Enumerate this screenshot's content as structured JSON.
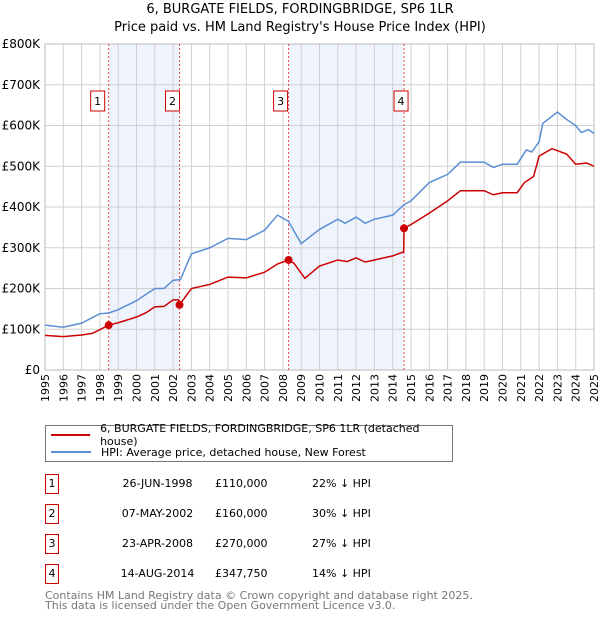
{
  "chart_data": {
    "type": "line",
    "title": "6, BURGATE FIELDS, FORDINGBRIDGE, SP6 1LR",
    "subtitle": "Price paid vs. HM Land Registry's House Price Index (HPI)",
    "xlim": [
      1995,
      2025
    ],
    "ylim": [
      0,
      800000
    ],
    "grid": true,
    "x_ticks": [
      "1995",
      "1996",
      "1997",
      "1998",
      "1999",
      "2000",
      "2001",
      "2002",
      "2003",
      "2004",
      "2005",
      "2006",
      "2007",
      "2008",
      "2009",
      "2010",
      "2011",
      "2012",
      "2013",
      "2014",
      "2015",
      "2016",
      "2017",
      "2018",
      "2019",
      "2020",
      "2021",
      "2022",
      "2023",
      "2024",
      "2025"
    ],
    "y_ticks": [
      {
        "v": 0,
        "label": "£0"
      },
      {
        "v": 100000,
        "label": "£100K"
      },
      {
        "v": 200000,
        "label": "£200K"
      },
      {
        "v": 300000,
        "label": "£300K"
      },
      {
        "v": 400000,
        "label": "£400K"
      },
      {
        "v": 500000,
        "label": "£500K"
      },
      {
        "v": 600000,
        "label": "£600K"
      },
      {
        "v": 700000,
        "label": "£700K"
      },
      {
        "v": 800000,
        "label": "£800K"
      }
    ],
    "shaded_ranges": [
      [
        1998.48,
        2002.35
      ],
      [
        2008.31,
        2014.62
      ]
    ],
    "series": [
      {
        "name": "6, BURGATE FIELDS, FORDINGBRIDGE, SP6 1LR (detached house)",
        "color": "#cc0000",
        "x": [
          1995,
          1996,
          1997,
          1997.6,
          1998.48,
          1999,
          2000,
          2000.5,
          2001,
          2001.5,
          2002,
          2002.3,
          2002.35,
          2003,
          2004,
          2005,
          2006,
          2007,
          2007.7,
          2008.31,
          2008.6,
          2009.2,
          2010,
          2011,
          2011.5,
          2012,
          2012.5,
          2013,
          2014,
          2014.6,
          2014.62,
          2015,
          2016,
          2016.5,
          2017,
          2017.7,
          2018,
          2019,
          2019.5,
          2020,
          2020.8,
          2021.2,
          2021.7,
          2022,
          2022.7,
          2023.5,
          2024,
          2024.6,
          2025
        ],
        "y": [
          85000,
          82000,
          86000,
          90000,
          110000,
          116000,
          130000,
          140000,
          155000,
          156000,
          172000,
          172000,
          160000,
          200000,
          210000,
          228000,
          226000,
          240000,
          260000,
          270000,
          262000,
          225000,
          255000,
          270000,
          266000,
          275000,
          265000,
          270000,
          280000,
          290000,
          347750,
          357000,
          385000,
          400000,
          415000,
          440000,
          440000,
          440000,
          430000,
          435000,
          435000,
          460000,
          475000,
          525000,
          543000,
          530000,
          505000,
          508000,
          500000
        ]
      },
      {
        "name": "HPI: Average price, detached house, New Forest",
        "color": "#5b8fd4",
        "x": [
          1995,
          1996,
          1997,
          1998,
          1998.48,
          1999,
          2000,
          2001,
          2001.5,
          2002,
          2002.4,
          2003,
          2004,
          2005,
          2006,
          2007,
          2007.7,
          2008.3,
          2009,
          2010,
          2011,
          2011.4,
          2012,
          2012.5,
          2013,
          2014,
          2014.6,
          2015,
          2016,
          2017,
          2017.7,
          2018,
          2019,
          2019.5,
          2020,
          2020.8,
          2021.3,
          2021.6,
          2022,
          2022.2,
          2023,
          2023.5,
          2024,
          2024.3,
          2024.7,
          2025
        ],
        "y": [
          110000,
          105000,
          115000,
          138000,
          140000,
          148000,
          170000,
          200000,
          200000,
          220000,
          222000,
          285000,
          300000,
          323000,
          320000,
          343000,
          380000,
          365000,
          310000,
          345000,
          370000,
          360000,
          375000,
          360000,
          370000,
          380000,
          405000,
          415000,
          460000,
          480000,
          510000,
          510000,
          510000,
          497000,
          505000,
          505000,
          540000,
          535000,
          560000,
          605000,
          633000,
          615000,
          600000,
          583000,
          590000,
          580000
        ]
      }
    ],
    "sales": [
      {
        "n": "1",
        "x": 1998.48,
        "y": 110000,
        "date": "26-JUN-1998",
        "price": "£110,000",
        "hpi": "22% ↓ HPI"
      },
      {
        "n": "2",
        "x": 2002.35,
        "y": 160000,
        "date": "07-MAY-2002",
        "price": "£160,000",
        "hpi": "30% ↓ HPI"
      },
      {
        "n": "3",
        "x": 2008.31,
        "y": 270000,
        "date": "23-APR-2008",
        "price": "£270,000",
        "hpi": "27% ↓ HPI"
      },
      {
        "n": "4",
        "x": 2014.62,
        "y": 347750,
        "date": "14-AUG-2014",
        "price": "£347,750",
        "hpi": "14% ↓ HPI"
      }
    ]
  },
  "legend": {
    "property": "6, BURGATE FIELDS, FORDINGBRIDGE, SP6 1LR (detached house)",
    "hpi": "HPI: Average price, detached house, New Forest"
  },
  "footer": {
    "line1": "Contains HM Land Registry data © Crown copyright and database right 2025.",
    "line2": "This data is licensed under the Open Government Licence v3.0."
  }
}
